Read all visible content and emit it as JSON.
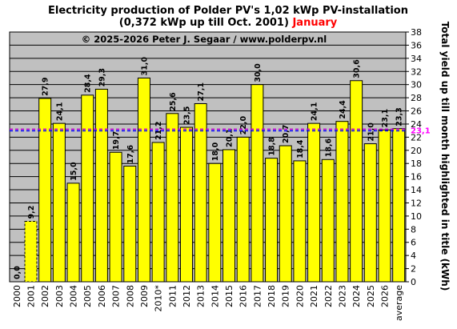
{
  "chart_data": {
    "type": "bar",
    "title_line1": "Electricity production  of Polder PV's 1,02 kWp PV-installation",
    "title_line2_main": "(0,372 kWp up till Oct. 2001) ",
    "title_line2_highlight": "January",
    "copyright": "© 2025-2026 Peter J. Segaar / www.polderpv.nl",
    "ylabel": "Total yield up till month highlighted in title (kWh)",
    "ylim": [
      0,
      38
    ],
    "ytick_step": 2,
    "grid": true,
    "categories": [
      "2000",
      "2001",
      "2002",
      "2003",
      "2004",
      "2005",
      "2006",
      "2007",
      "2008",
      "2009",
      "2010*",
      "2011",
      "2012",
      "2013",
      "2014",
      "2015",
      "2016",
      "2017",
      "2018",
      "2019",
      "2020",
      "2021",
      "2022",
      "2023",
      "2024",
      "2025",
      "2026",
      "average"
    ],
    "values": [
      0.0,
      9.2,
      27.9,
      24.1,
      15.0,
      28.4,
      29.3,
      19.7,
      17.6,
      31.0,
      21.2,
      25.6,
      23.5,
      27.1,
      18.0,
      20.1,
      22.0,
      30.0,
      18.8,
      20.7,
      18.4,
      24.1,
      18.6,
      24.4,
      30.6,
      21.0,
      23.1,
      23.3
    ],
    "value_labels": [
      "0,0",
      "9,2",
      "27,9",
      "24,1",
      "15,0",
      "28,4",
      "29,3",
      "19,7",
      "17,6",
      "31,0",
      "21,2",
      "25,6",
      "23,5",
      "27,1",
      "18,0",
      "20,1",
      "22,0",
      "30,0",
      "18,8",
      "20,7",
      "18,4",
      "24,1",
      "18,6",
      "24,4",
      "30,6",
      "21,0",
      "23,1",
      "23,3"
    ],
    "dashed_bars": [
      "2001"
    ],
    "highlight_category": "average",
    "reference_line": {
      "value": 23.1,
      "label": "23,1"
    },
    "colors": {
      "bar_fill": "#ffff00",
      "plot_bg": "#c0c0c0",
      "highlight_label": "#ff0000",
      "ref_line_purple": "#cc00cc",
      "ref_line_blue": "#0000ff",
      "ref_label": "#ff00ff"
    }
  }
}
